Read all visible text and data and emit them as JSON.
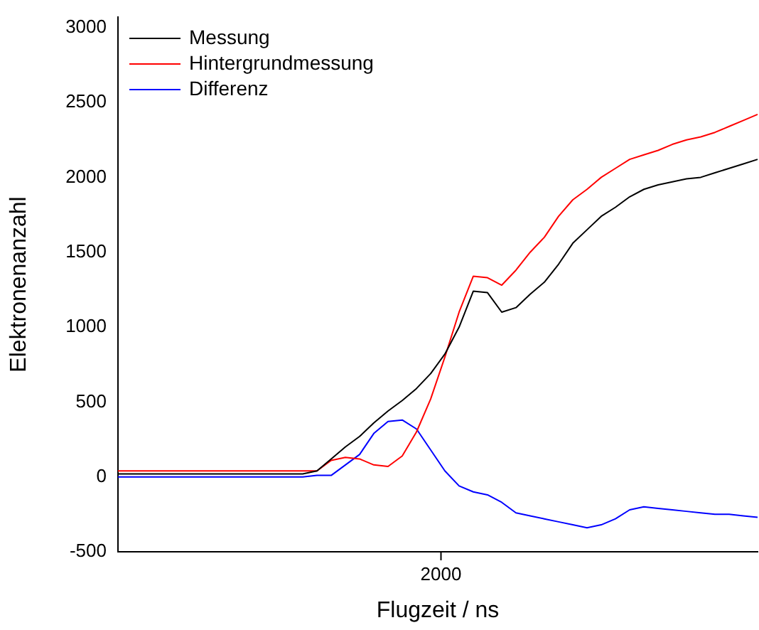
{
  "chart_data": {
    "type": "line",
    "xlabel": "Flugzeit / ns",
    "ylabel": "Elektronenanzahl",
    "categories": [
      null,
      null,
      null,
      null,
      null,
      null,
      null,
      null,
      null,
      null,
      null,
      null,
      null,
      null,
      null,
      null,
      null,
      null,
      null,
      null,
      null,
      null,
      null,
      null,
      null,
      null,
      null,
      null,
      null,
      null,
      null,
      null,
      null,
      null,
      null,
      null,
      null,
      null,
      null,
      null,
      null,
      null,
      null,
      null,
      null,
      null
    ],
    "series": [
      {
        "name": "Messung",
        "color": "#000000",
        "values": [
          20,
          20,
          20,
          20,
          20,
          20,
          20,
          20,
          20,
          20,
          20,
          20,
          20,
          20,
          40,
          120,
          200,
          270,
          360,
          440,
          510,
          590,
          690,
          820,
          1000,
          1240,
          1230,
          1100,
          1130,
          1220,
          1300,
          1420,
          1560,
          1650,
          1740,
          1800,
          1870,
          1920,
          1950,
          1970,
          1990,
          2000,
          2030,
          2060,
          2090,
          2120
        ]
      },
      {
        "name": "Hintergrundmessung",
        "color": "#ff0000",
        "values": [
          40,
          40,
          40,
          40,
          40,
          40,
          40,
          40,
          40,
          40,
          40,
          40,
          40,
          40,
          40,
          110,
          130,
          120,
          80,
          70,
          140,
          300,
          520,
          800,
          1100,
          1340,
          1330,
          1280,
          1380,
          1500,
          1600,
          1740,
          1850,
          1920,
          2000,
          2060,
          2120,
          2150,
          2180,
          2220,
          2250,
          2270,
          2300,
          2340,
          2380,
          2420
        ]
      },
      {
        "name": "Differenz",
        "color": "#0000ff",
        "values": [
          0,
          0,
          0,
          0,
          0,
          0,
          0,
          0,
          0,
          0,
          0,
          0,
          0,
          0,
          10,
          10,
          80,
          150,
          290,
          370,
          380,
          320,
          180,
          40,
          -60,
          -100,
          -120,
          -170,
          -240,
          -260,
          -280,
          -300,
          -320,
          -340,
          -320,
          -280,
          -220,
          -200,
          -210,
          -220,
          -230,
          -240,
          -250,
          -250,
          -260,
          -270
        ]
      }
    ],
    "ylim": [
      -500,
      3070
    ],
    "yticks": [
      -500,
      0,
      500,
      1000,
      1500,
      2000,
      2500,
      3000
    ],
    "annotations": [
      "2000"
    ],
    "legend": "top left",
    "grid": false,
    "marker": "none",
    "line_style": "solid"
  }
}
